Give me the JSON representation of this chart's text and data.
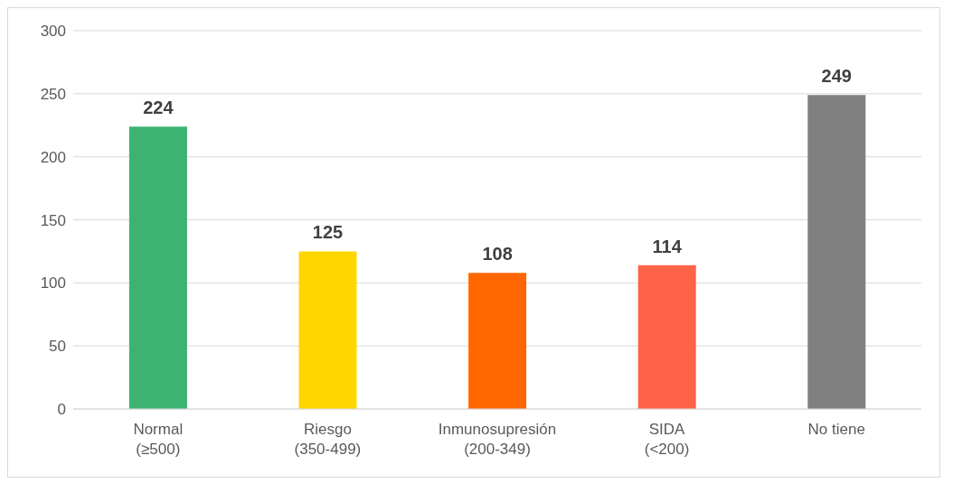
{
  "chart_data": {
    "type": "bar",
    "categories": [
      "Normal\n(≥500)",
      "Riesgo\n(350-499)",
      "Inmunosupresión\n(200-349)",
      "SIDA\n(<200)",
      "No tiene"
    ],
    "values": [
      224,
      125,
      108,
      114,
      249
    ],
    "colors": [
      "#3cb371",
      "#ffd700",
      "#ff6600",
      "#ff6347",
      "#808080"
    ],
    "ylim": [
      0,
      300
    ],
    "yticks": [
      0,
      50,
      100,
      150,
      200,
      250,
      300
    ],
    "grid": "y",
    "data_labels": true,
    "legend": false
  }
}
